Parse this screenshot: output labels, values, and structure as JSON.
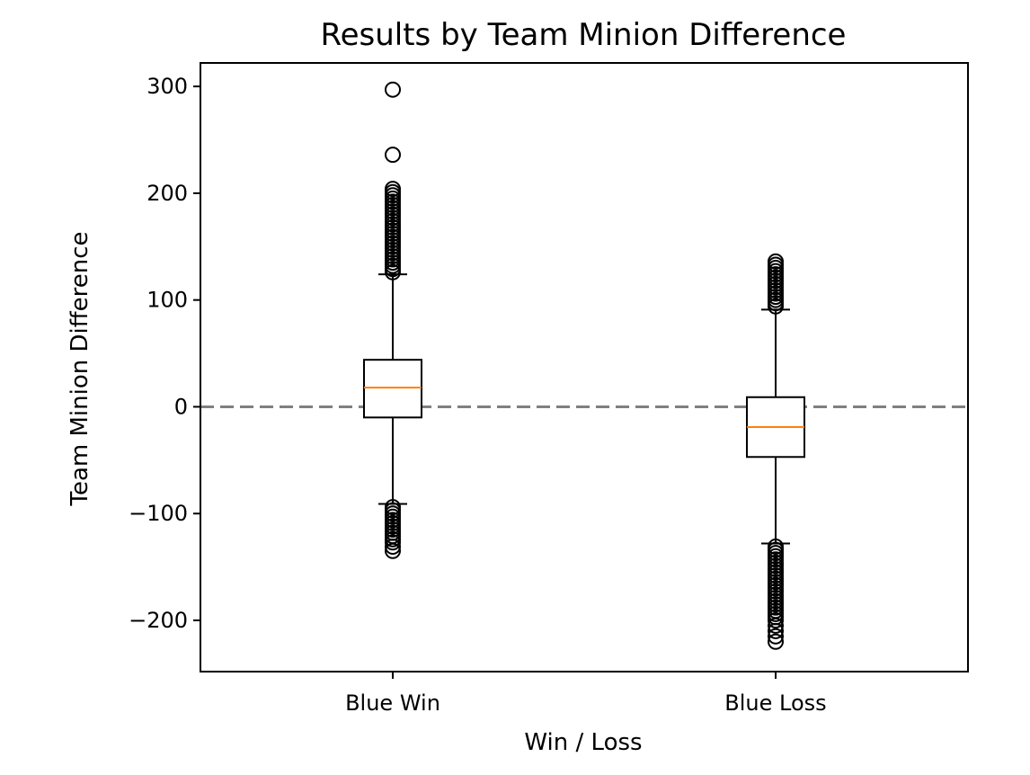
{
  "chart_data": {
    "type": "boxplot",
    "title": "Results by Team Minion Difference",
    "xlabel": "Win / Loss",
    "ylabel": "Team Minion Difference",
    "ylim": [
      -248,
      322
    ],
    "yticks": [
      -200,
      -100,
      0,
      100,
      200,
      300
    ],
    "ytick_labels": [
      "−200",
      "−100",
      "0",
      "100",
      "200",
      "300"
    ],
    "categories": [
      "Blue Win",
      "Blue Loss"
    ],
    "reference_line": {
      "y": 0,
      "style": "dashed",
      "color": "#808080"
    },
    "grid": false,
    "colors": {
      "box": "#000000",
      "median": "#ff7f0e",
      "whisker": "#000000",
      "flier": "#000000"
    },
    "boxes": [
      {
        "name": "Blue Win",
        "whisker_low": -91,
        "q1": -10,
        "median": 18,
        "q3": 44,
        "whisker_high": 124,
        "outliers": [
          297,
          236,
          204,
          201,
          198,
          195,
          192,
          189,
          186,
          183,
          180,
          177,
          174,
          171,
          168,
          165,
          162,
          159,
          156,
          153,
          150,
          147,
          144,
          141,
          138,
          135,
          132,
          129,
          126,
          -94,
          -97,
          -100,
          -103,
          -106,
          -109,
          -112,
          -115,
          -118,
          -121,
          -124,
          -127,
          -131,
          -135
        ]
      },
      {
        "name": "Blue Loss",
        "whisker_low": -128,
        "q1": -47,
        "median": -19,
        "q3": 9,
        "whisker_high": 91,
        "outliers": [
          136,
          133,
          130,
          127,
          124,
          121,
          118,
          115,
          112,
          109,
          106,
          103,
          100,
          97,
          94,
          -131,
          -134,
          -137,
          -140,
          -143,
          -146,
          -149,
          -152,
          -155,
          -158,
          -161,
          -164,
          -167,
          -170,
          -173,
          -176,
          -179,
          -182,
          -185,
          -188,
          -191,
          -194,
          -197,
          -200,
          -205,
          -210,
          -215,
          -220
        ]
      }
    ]
  }
}
